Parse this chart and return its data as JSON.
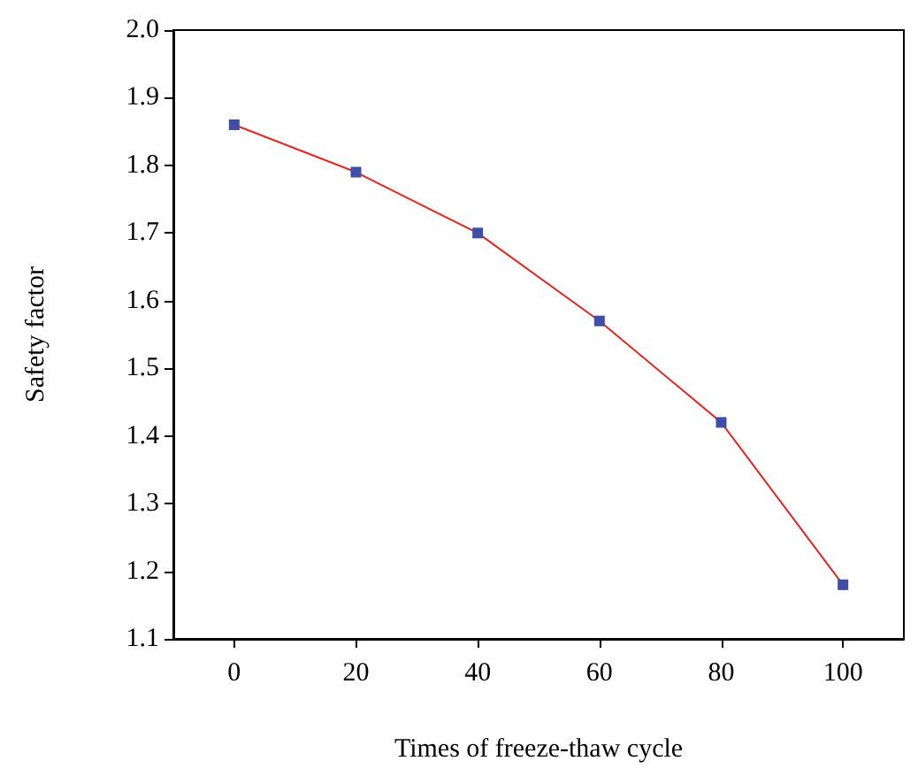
{
  "chart_data": {
    "type": "line",
    "xlabel": "Times of freeze-thaw cycle",
    "ylabel": "Safety factor",
    "x": [
      0,
      20,
      40,
      60,
      80,
      100
    ],
    "series": [
      {
        "color": "#e8251f",
        "colors": [
          "#3f4fa8",
          "#3f4fa8",
          "#3f4fa8",
          "#3f4fa8",
          "#3f4fa8",
          "#3f4fa8"
        ],
        "values": [
          1.86,
          1.79,
          1.7,
          1.57,
          1.42,
          1.18
        ]
      }
    ],
    "xlim": [
      -10,
      110
    ],
    "xticks": [
      0,
      20,
      40,
      60,
      80,
      100
    ],
    "ylim": [
      1.1,
      2.0
    ],
    "yticks": [
      1.1,
      1.2,
      1.3,
      1.4,
      1.5,
      1.6,
      1.7,
      1.8,
      1.9,
      {
        "value": 2.0,
        "label": "2.0"
      }
    ],
    "grid": false,
    "marker": "square",
    "line_style": "solid"
  }
}
